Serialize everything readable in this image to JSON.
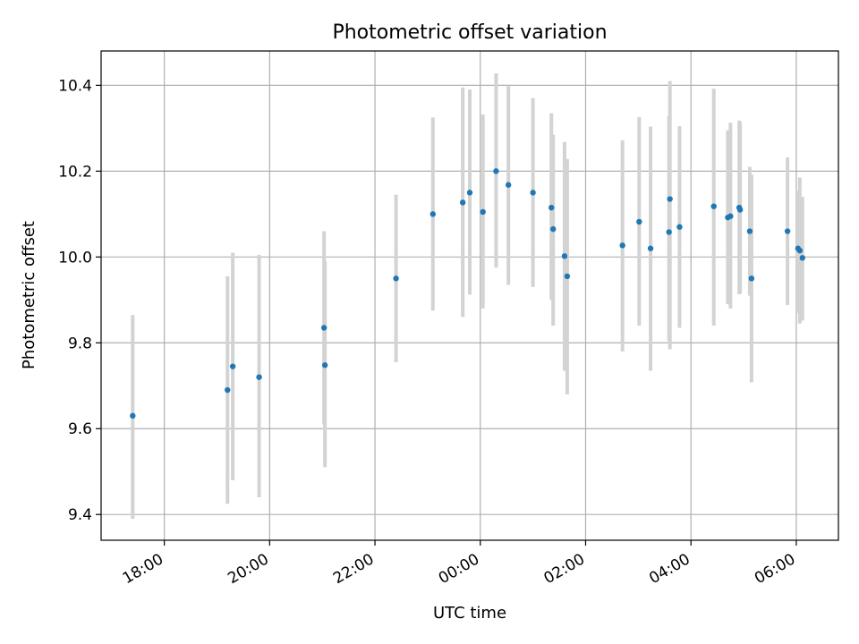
{
  "chart_data": {
    "type": "scatter",
    "title": "Photometric offset variation",
    "xlabel": "UTC time",
    "ylabel": "Photometric offset",
    "xlim_hours": [
      16.8,
      30.8
    ],
    "ylim": [
      9.34,
      10.48
    ],
    "x_ticks": [
      {
        "hour": 18,
        "label": "18:00"
      },
      {
        "hour": 20,
        "label": "20:00"
      },
      {
        "hour": 22,
        "label": "22:00"
      },
      {
        "hour": 24,
        "label": "00:00"
      },
      {
        "hour": 26,
        "label": "02:00"
      },
      {
        "hour": 28,
        "label": "04:00"
      },
      {
        "hour": 30,
        "label": "06:00"
      }
    ],
    "y_ticks": [
      {
        "value": 9.4,
        "label": "9.4"
      },
      {
        "value": 9.6,
        "label": "9.6"
      },
      {
        "value": 9.8,
        "label": "9.8"
      },
      {
        "value": 10.0,
        "label": "10.0"
      },
      {
        "value": 10.2,
        "label": "10.2"
      },
      {
        "value": 10.4,
        "label": "10.4"
      }
    ],
    "grid": true,
    "point_color": "#1f77b4",
    "errorbar_color": "#d3d3d3",
    "series": [
      {
        "points": [
          {
            "x": "17:24",
            "y": 9.63,
            "lo": 9.39,
            "hi": 9.865
          },
          {
            "x": "19:12",
            "y": 9.69,
            "lo": 9.425,
            "hi": 9.955
          },
          {
            "x": "19:18",
            "y": 9.745,
            "lo": 9.48,
            "hi": 10.01
          },
          {
            "x": "19:48",
            "y": 9.72,
            "lo": 9.44,
            "hi": 10.005
          },
          {
            "x": "21:02",
            "y": 9.835,
            "lo": 9.61,
            "hi": 10.06
          },
          {
            "x": "21:03",
            "y": 9.748,
            "lo": 9.51,
            "hi": 9.99
          },
          {
            "x": "22:24",
            "y": 9.95,
            "lo": 9.755,
            "hi": 10.145
          },
          {
            "x": "23:06",
            "y": 10.1,
            "lo": 9.875,
            "hi": 10.325
          },
          {
            "x": "23:40",
            "y": 10.127,
            "lo": 9.86,
            "hi": 10.395
          },
          {
            "x": "23:48",
            "y": 10.15,
            "lo": 9.912,
            "hi": 10.39
          },
          {
            "x": "00:03",
            "y": 10.105,
            "lo": 9.88,
            "hi": 10.332
          },
          {
            "x": "00:18",
            "y": 10.2,
            "lo": 9.975,
            "hi": 10.428
          },
          {
            "x": "00:32",
            "y": 10.168,
            "lo": 9.935,
            "hi": 10.398
          },
          {
            "x": "01:00",
            "y": 10.15,
            "lo": 9.93,
            "hi": 10.37
          },
          {
            "x": "01:21",
            "y": 10.115,
            "lo": 9.9,
            "hi": 10.335
          },
          {
            "x": "01:23",
            "y": 10.065,
            "lo": 9.84,
            "hi": 10.285
          },
          {
            "x": "01:36",
            "y": 10.002,
            "lo": 9.735,
            "hi": 10.268
          },
          {
            "x": "01:39",
            "y": 9.955,
            "lo": 9.68,
            "hi": 10.228
          },
          {
            "x": "02:42",
            "y": 10.027,
            "lo": 9.78,
            "hi": 10.272
          },
          {
            "x": "03:01",
            "y": 10.082,
            "lo": 9.84,
            "hi": 10.326
          },
          {
            "x": "03:14",
            "y": 10.02,
            "lo": 9.735,
            "hi": 10.304
          },
          {
            "x": "03:35",
            "y": 10.058,
            "lo": 9.805,
            "hi": 10.328
          },
          {
            "x": "03:36",
            "y": 10.135,
            "lo": 9.785,
            "hi": 10.41
          },
          {
            "x": "03:47",
            "y": 10.07,
            "lo": 9.835,
            "hi": 10.305
          },
          {
            "x": "04:26",
            "y": 10.118,
            "lo": 9.84,
            "hi": 10.392
          },
          {
            "x": "04:42",
            "y": 10.092,
            "lo": 9.89,
            "hi": 10.295
          },
          {
            "x": "04:45",
            "y": 10.095,
            "lo": 9.88,
            "hi": 10.313
          },
          {
            "x": "04:55",
            "y": 10.115,
            "lo": 9.913,
            "hi": 10.318
          },
          {
            "x": "04:56",
            "y": 10.11,
            "lo": 9.915,
            "hi": 10.315
          },
          {
            "x": "05:07",
            "y": 10.06,
            "lo": 9.91,
            "hi": 10.21
          },
          {
            "x": "05:09",
            "y": 9.95,
            "lo": 9.708,
            "hi": 10.192
          },
          {
            "x": "05:50",
            "y": 10.06,
            "lo": 9.888,
            "hi": 10.232
          },
          {
            "x": "06:02",
            "y": 10.02,
            "lo": 9.87,
            "hi": 10.155
          },
          {
            "x": "06:04",
            "y": 10.015,
            "lo": 9.845,
            "hi": 10.185
          },
          {
            "x": "06:07",
            "y": 9.998,
            "lo": 9.852,
            "hi": 10.14
          }
        ]
      }
    ]
  }
}
